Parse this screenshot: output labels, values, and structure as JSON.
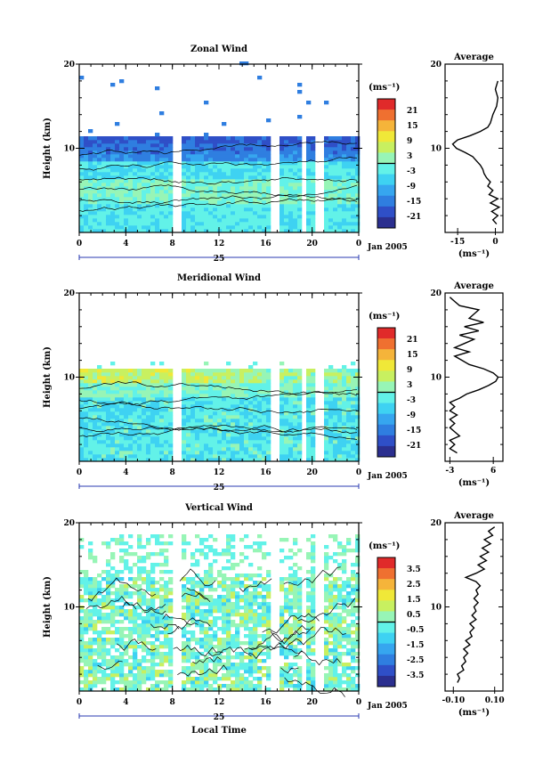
{
  "chart_data": [
    {
      "type": "heatmap",
      "title": "Zonal Wind",
      "ylabel": "Height (km)",
      "xlabel": "",
      "x_ticks": [
        "0",
        "4",
        "8",
        "12",
        "16",
        "20",
        "0"
      ],
      "y_ticks": [
        "10",
        "20"
      ],
      "day_label": "25",
      "date_label": "Jan 2005",
      "colorbar": {
        "unit": "(ms⁻¹)",
        "ticks": [
          "21",
          "15",
          "9",
          "3",
          "-3",
          "-9",
          "-15",
          "-21"
        ],
        "range": [
          -24,
          24
        ]
      },
      "field": "zonal",
      "average": {
        "title": "Average",
        "x_ticks": [
          "-15",
          "0"
        ],
        "xlabel": "(ms⁻¹)",
        "y_ticks": [
          "10",
          "20"
        ],
        "xlim": [
          -20,
          3
        ],
        "profile": [
          [
            1,
            0.5
          ],
          [
            1.5,
            -1
          ],
          [
            2,
            1
          ],
          [
            2.5,
            -1.5
          ],
          [
            3,
            1.5
          ],
          [
            3.5,
            -2
          ],
          [
            4,
            1
          ],
          [
            4.5,
            -2.5
          ],
          [
            5,
            -1
          ],
          [
            5.5,
            -3
          ],
          [
            6,
            -2
          ],
          [
            6.5,
            -3.5
          ],
          [
            7,
            -4.5
          ],
          [
            7.5,
            -5
          ],
          [
            8,
            -6
          ],
          [
            8.5,
            -7.5
          ],
          [
            9,
            -9
          ],
          [
            9.5,
            -12
          ],
          [
            10,
            -15.5
          ],
          [
            10.5,
            -17
          ],
          [
            11,
            -15
          ],
          [
            11.5,
            -10
          ],
          [
            12,
            -6
          ],
          [
            12.5,
            -3
          ],
          [
            13,
            -2
          ],
          [
            13.5,
            -1.5
          ],
          [
            14,
            -1
          ],
          [
            15,
            0.5
          ],
          [
            16,
            1
          ],
          [
            17,
            0
          ],
          [
            18,
            1
          ]
        ]
      }
    },
    {
      "type": "heatmap",
      "title": "Meridional Wind",
      "ylabel": "Height (km)",
      "xlabel": "",
      "x_ticks": [
        "0",
        "4",
        "8",
        "12",
        "16",
        "20",
        "0"
      ],
      "y_ticks": [
        "10",
        "20"
      ],
      "day_label": "25",
      "date_label": "Jan 2005",
      "colorbar": {
        "unit": "(ms⁻¹)",
        "ticks": [
          "21",
          "15",
          "9",
          "3",
          "-3",
          "-9",
          "-15",
          "-21"
        ],
        "range": [
          -24,
          24
        ]
      },
      "field": "meridional",
      "average": {
        "title": "Average",
        "x_ticks": [
          "-3",
          "6"
        ],
        "xlabel": "(ms⁻¹)",
        "y_ticks": [
          "10",
          "20"
        ],
        "xlim": [
          -4,
          8
        ],
        "profile": [
          [
            1,
            -1.5
          ],
          [
            1.5,
            -3
          ],
          [
            2,
            -2
          ],
          [
            2.5,
            -3
          ],
          [
            3,
            -1
          ],
          [
            3.5,
            -2
          ],
          [
            4,
            -3
          ],
          [
            4.5,
            -2
          ],
          [
            5,
            -3
          ],
          [
            5.5,
            -1.5
          ],
          [
            6,
            -3
          ],
          [
            6.5,
            -2
          ],
          [
            7,
            -3
          ],
          [
            7.5,
            -1
          ],
          [
            8,
            0.5
          ],
          [
            8.5,
            3
          ],
          [
            9,
            5
          ],
          [
            9.5,
            6.5
          ],
          [
            10,
            7
          ],
          [
            10.5,
            6
          ],
          [
            11,
            4
          ],
          [
            11.5,
            1
          ],
          [
            12,
            -0.5
          ],
          [
            12.5,
            -2
          ],
          [
            13,
            1
          ],
          [
            13.5,
            -2
          ],
          [
            14,
            0
          ],
          [
            14.5,
            2
          ],
          [
            15,
            -1
          ],
          [
            15.5,
            3
          ],
          [
            16,
            0
          ],
          [
            16.5,
            4
          ],
          [
            17,
            1
          ],
          [
            17.5,
            2
          ],
          [
            18,
            3
          ],
          [
            18.5,
            -1
          ],
          [
            19,
            -2
          ],
          [
            19.5,
            -3
          ]
        ]
      }
    },
    {
      "type": "heatmap",
      "title": "Vertical Wind",
      "ylabel": "Height (km)",
      "xlabel": "Local Time",
      "x_ticks": [
        "0",
        "4",
        "8",
        "12",
        "16",
        "20",
        "0"
      ],
      "y_ticks": [
        "10",
        "20"
      ],
      "day_label": "25",
      "date_label": "Jan 2005",
      "colorbar": {
        "unit": "(ms⁻¹)",
        "ticks": [
          "3.5",
          "2.5",
          "1.5",
          "0.5",
          "-0.5",
          "-1.5",
          "-2.5",
          "-3.5"
        ],
        "range": [
          -4,
          4
        ]
      },
      "field": "vertical",
      "average": {
        "title": "Average",
        "x_ticks": [
          "-0.10",
          "0.10"
        ],
        "xlabel": "(ms⁻¹)",
        "y_ticks": [
          "10",
          "20"
        ],
        "xlim": [
          -0.14,
          0.14
        ],
        "profile": [
          [
            1,
            -0.08
          ],
          [
            1.5,
            -0.07
          ],
          [
            2,
            -0.08
          ],
          [
            2.5,
            -0.05
          ],
          [
            3,
            -0.06
          ],
          [
            3.5,
            -0.04
          ],
          [
            4,
            -0.05
          ],
          [
            4.5,
            -0.03
          ],
          [
            5,
            -0.05
          ],
          [
            5.5,
            -0.02
          ],
          [
            6,
            -0.04
          ],
          [
            6.5,
            -0.01
          ],
          [
            7,
            -0.02
          ],
          [
            7.5,
            0.0
          ],
          [
            8,
            -0.02
          ],
          [
            8.5,
            0.01
          ],
          [
            9,
            -0.01
          ],
          [
            9.5,
            0.01
          ],
          [
            10,
            0.0
          ],
          [
            10.5,
            0.02
          ],
          [
            11,
            0.0
          ],
          [
            11.5,
            0.02
          ],
          [
            12,
            0.01
          ],
          [
            12.5,
            0.03
          ],
          [
            13,
            0.01
          ],
          [
            13.5,
            -0.04
          ],
          [
            14,
            0.01
          ],
          [
            14.5,
            0.05
          ],
          [
            15,
            0.02
          ],
          [
            15.5,
            0.06
          ],
          [
            16,
            0.03
          ],
          [
            16.5,
            0.07
          ],
          [
            17,
            0.04
          ],
          [
            17.5,
            0.08
          ],
          [
            18,
            0.05
          ],
          [
            18.5,
            0.09
          ],
          [
            19,
            0.07
          ],
          [
            19.5,
            0.1
          ]
        ]
      }
    }
  ]
}
